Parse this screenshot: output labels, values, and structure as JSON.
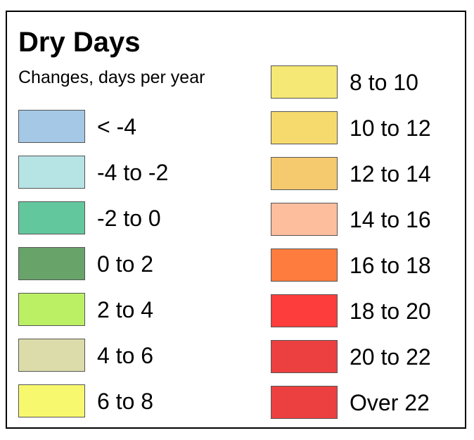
{
  "legend": {
    "title": "Dry Days",
    "subtitle": "Changes, days per year",
    "left_entries": [
      {
        "label": "< -4",
        "color": "#A4C8E6"
      },
      {
        "label": "-4 to -2",
        "color": "#B6E3E4"
      },
      {
        "label": "-2 to 0",
        "color": "#63C79E"
      },
      {
        "label": "0 to 2",
        "color": "#68A36A"
      },
      {
        "label": "2 to 4",
        "color": "#BCF064"
      },
      {
        "label": "4 to 6",
        "color": "#DCDCAA"
      },
      {
        "label": "6 to 8",
        "color": "#F8F86E"
      }
    ],
    "right_entries": [
      {
        "label": "8 to 10",
        "color": "#F5E874"
      },
      {
        "label": "10 to 12",
        "color": "#F6DA6E"
      },
      {
        "label": "12 to 14",
        "color": "#F5C96E"
      },
      {
        "label": "14 to 16",
        "color": "#FDBE9E"
      },
      {
        "label": "16 to 18",
        "color": "#FD7C3E"
      },
      {
        "label": "18 to 20",
        "color": "#FD3C3C"
      },
      {
        "label": "20 to 22",
        "color": "#EC4040"
      },
      {
        "label": "Over 22",
        "color": "#EC4040"
      }
    ]
  }
}
